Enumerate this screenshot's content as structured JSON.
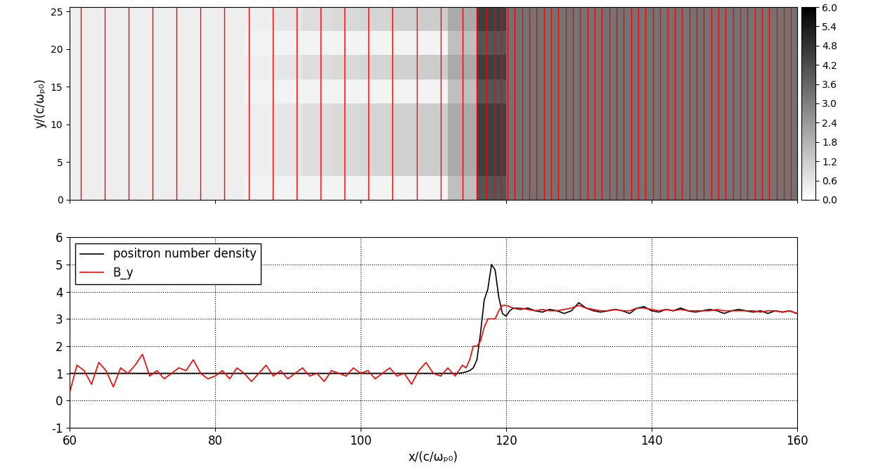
{
  "chart_data": [
    {
      "type": "heatmap",
      "ylabel": "y/(c/ωₚ₀)",
      "xlim": [
        60,
        160
      ],
      "xticks": [
        60,
        80,
        100,
        120,
        140,
        160
      ],
      "ylim": [
        0,
        25.6
      ],
      "yticks": [
        0,
        5,
        10,
        15,
        20,
        25
      ],
      "tick_labels": "y",
      "x_edges": [
        60,
        64,
        68,
        72,
        76,
        80,
        84,
        88,
        92,
        96,
        100,
        104,
        108,
        112,
        116,
        120,
        124,
        128,
        132,
        136,
        140,
        144,
        148,
        152,
        156,
        160
      ],
      "y_edges": [
        0,
        3.2,
        6.4,
        9.6,
        12.8,
        16.0,
        19.2,
        22.4,
        25.6
      ],
      "cells": [
        [
          0.4,
          0.4,
          0.4,
          0.4,
          0.4,
          0.4,
          0.3,
          0.3,
          0.3,
          0.3,
          0.3,
          0.3,
          0.3,
          1.5,
          4.0,
          3.3,
          3.3,
          3.3,
          3.3,
          3.3,
          3.3,
          3.3,
          3.3,
          3.3,
          3.3
        ],
        [
          0.4,
          0.4,
          0.4,
          0.4,
          0.4,
          0.4,
          0.4,
          0.6,
          0.8,
          0.9,
          1.0,
          1.1,
          1.2,
          2.0,
          4.5,
          3.3,
          3.3,
          3.3,
          3.3,
          3.3,
          3.3,
          3.3,
          3.3,
          3.3,
          3.3
        ],
        [
          0.4,
          0.4,
          0.4,
          0.4,
          0.4,
          0.4,
          0.4,
          0.6,
          0.8,
          0.9,
          1.0,
          1.1,
          1.2,
          2.0,
          4.5,
          3.3,
          3.3,
          3.3,
          3.3,
          3.3,
          3.3,
          3.3,
          3.3,
          3.3,
          3.3
        ],
        [
          0.4,
          0.4,
          0.4,
          0.4,
          0.4,
          0.4,
          0.4,
          0.6,
          0.8,
          0.9,
          1.0,
          1.1,
          1.2,
          2.0,
          4.5,
          3.3,
          3.3,
          3.3,
          3.3,
          3.3,
          3.3,
          3.3,
          3.3,
          3.3,
          3.3
        ],
        [
          0.4,
          0.4,
          0.4,
          0.4,
          0.4,
          0.4,
          0.3,
          0.3,
          0.3,
          0.3,
          0.3,
          0.3,
          0.3,
          1.5,
          4.0,
          3.3,
          3.3,
          3.3,
          3.3,
          3.3,
          3.3,
          3.3,
          3.3,
          3.3,
          3.3
        ],
        [
          0.4,
          0.4,
          0.4,
          0.4,
          0.4,
          0.4,
          0.4,
          0.6,
          0.8,
          0.9,
          1.0,
          1.1,
          1.2,
          2.0,
          4.5,
          3.3,
          3.3,
          3.3,
          3.3,
          3.3,
          3.3,
          3.3,
          3.3,
          3.3,
          3.3
        ],
        [
          0.4,
          0.4,
          0.4,
          0.4,
          0.4,
          0.4,
          0.3,
          0.3,
          0.3,
          0.3,
          0.3,
          0.3,
          0.3,
          1.5,
          4.0,
          3.3,
          3.3,
          3.3,
          3.3,
          3.3,
          3.3,
          3.3,
          3.3,
          3.3,
          3.3
        ],
        [
          0.4,
          0.4,
          0.4,
          0.4,
          0.4,
          0.4,
          0.4,
          0.6,
          0.8,
          0.9,
          1.0,
          1.1,
          1.2,
          2.0,
          4.5,
          3.3,
          3.3,
          3.3,
          3.3,
          3.3,
          3.3,
          3.3,
          3.3,
          3.3,
          3.3
        ]
      ],
      "colorbar_range": [
        0,
        6
      ],
      "colorbar_ticks": [
        {
          "value": 0,
          "label": "0.0"
        },
        {
          "value": 0.6,
          "label": "0.6"
        },
        {
          "value": 1.2,
          "label": "1.2"
        },
        {
          "value": 1.8,
          "label": "1.8"
        },
        {
          "value": 2.4,
          "label": "2.4"
        },
        {
          "value": 3.0,
          "label": "3.0"
        },
        {
          "value": 3.6,
          "label": "3.6"
        },
        {
          "value": 4.2,
          "label": "4.2"
        },
        {
          "value": 4.8,
          "label": "4.8"
        },
        {
          "value": 5.4,
          "label": "5.4"
        },
        {
          "value": 6.0,
          "label": "6.0"
        }
      ],
      "color": "#ff0000",
      "field_lines_x": [
        61.5,
        64.8,
        68.1,
        71.4,
        74.7,
        78.0,
        81.3,
        84.6,
        87.9,
        91.2,
        94.5,
        97.8,
        101.1,
        104.4,
        107.7,
        111.0,
        114.0,
        116.0,
        117.3,
        118.4,
        119.3,
        120.2,
        121.2,
        122.2,
        123.2,
        124.2,
        125.2,
        126.2,
        127.2,
        128.2,
        129.2,
        130.2,
        131.2,
        132.2,
        133.2,
        134.2,
        135.2,
        136.2,
        137.2,
        138.2,
        139.2,
        140.2,
        141.2,
        142.2,
        143.2,
        144.2,
        145.2,
        146.2,
        147.2,
        148.2,
        149.2,
        150.2,
        151.2,
        152.2,
        153.2,
        154.2,
        155.2,
        156.2,
        157.2,
        158.2,
        159.2
      ]
    },
    {
      "type": "line",
      "xlabel": "x/(c/ωₚ₀)",
      "xlim": [
        60,
        160
      ],
      "xticks": [
        60,
        80,
        100,
        120,
        140,
        160
      ],
      "ylim": [
        -1,
        6
      ],
      "yticks": [
        -1,
        0,
        1,
        2,
        3,
        4,
        5,
        6
      ],
      "grid": true,
      "legend": "upper left",
      "x": [
        60,
        61,
        62,
        63,
        64,
        65,
        66,
        67,
        68,
        69,
        70,
        71,
        72,
        73,
        74,
        75,
        76,
        77,
        78,
        79,
        80,
        81,
        82,
        83,
        84,
        85,
        86,
        87,
        88,
        89,
        90,
        91,
        92,
        93,
        94,
        95,
        96,
        97,
        98,
        99,
        100,
        101,
        102,
        103,
        104,
        105,
        106,
        107,
        108,
        109,
        110,
        111,
        112,
        113,
        113.5,
        114,
        114.5,
        115,
        115.5,
        116,
        116.5,
        117,
        117.5,
        118,
        118.5,
        119,
        119.5,
        120,
        120.5,
        121,
        122,
        123,
        124,
        125,
        126,
        127,
        128,
        129,
        130,
        131,
        132,
        133,
        134,
        135,
        136,
        137,
        138,
        139,
        140,
        141,
        142,
        143,
        144,
        145,
        146,
        147,
        148,
        149,
        150,
        151,
        152,
        153,
        154,
        155,
        156,
        157,
        158,
        159,
        160
      ],
      "series": [
        {
          "name": "positron number density",
          "color": "#000000",
          "values": [
            1.0,
            1.0,
            1.0,
            1.0,
            1.0,
            1.0,
            1.0,
            1.0,
            1.0,
            1.0,
            1.0,
            1.0,
            1.0,
            1.0,
            1.0,
            1.0,
            1.0,
            1.0,
            1.0,
            1.0,
            1.0,
            1.0,
            1.0,
            1.0,
            1.0,
            1.0,
            1.0,
            1.0,
            1.0,
            1.0,
            1.0,
            1.0,
            1.0,
            1.0,
            1.0,
            1.0,
            1.0,
            1.0,
            1.0,
            1.0,
            1.0,
            1.0,
            1.0,
            1.0,
            1.0,
            1.0,
            1.0,
            1.0,
            1.0,
            1.0,
            1.0,
            1.0,
            1.0,
            1.0,
            1.0,
            1.02,
            1.05,
            1.1,
            1.2,
            1.5,
            2.5,
            3.7,
            4.1,
            5.0,
            4.8,
            3.8,
            3.2,
            3.1,
            3.3,
            3.4,
            3.35,
            3.4,
            3.3,
            3.25,
            3.35,
            3.3,
            3.2,
            3.3,
            3.6,
            3.4,
            3.3,
            3.25,
            3.3,
            3.35,
            3.3,
            3.2,
            3.4,
            3.45,
            3.3,
            3.25,
            3.35,
            3.3,
            3.4,
            3.3,
            3.25,
            3.3,
            3.35,
            3.3,
            3.2,
            3.3,
            3.35,
            3.3,
            3.25,
            3.3,
            3.2,
            3.3,
            3.25,
            3.3,
            3.2
          ]
        },
        {
          "name": "B_y",
          "color": "#ff0000",
          "values": [
            0.3,
            1.3,
            1.1,
            0.6,
            1.4,
            1.1,
            0.5,
            1.2,
            1.0,
            1.3,
            1.7,
            0.9,
            1.1,
            0.8,
            1.0,
            1.2,
            1.1,
            1.5,
            1.0,
            0.8,
            0.9,
            1.1,
            0.8,
            1.2,
            1.0,
            0.7,
            1.0,
            1.3,
            0.9,
            1.1,
            0.8,
            1.0,
            1.2,
            0.9,
            1.0,
            0.7,
            1.1,
            1.0,
            0.9,
            1.2,
            1.0,
            1.1,
            0.8,
            1.0,
            1.2,
            0.9,
            1.0,
            0.6,
            1.1,
            1.4,
            1.0,
            0.9,
            1.2,
            0.9,
            1.1,
            1.3,
            1.2,
            1.5,
            2.0,
            2.0,
            2.2,
            2.7,
            3.0,
            3.0,
            3.0,
            3.3,
            3.5,
            3.5,
            3.45,
            3.4,
            3.4,
            3.35,
            3.3,
            3.35,
            3.3,
            3.3,
            3.35,
            3.4,
            3.5,
            3.4,
            3.35,
            3.3,
            3.3,
            3.35,
            3.3,
            3.3,
            3.4,
            3.4,
            3.35,
            3.3,
            3.35,
            3.3,
            3.35,
            3.3,
            3.3,
            3.3,
            3.3,
            3.35,
            3.3,
            3.3,
            3.3,
            3.3,
            3.3,
            3.25,
            3.3,
            3.3,
            3.25,
            3.3,
            3.2
          ]
        }
      ]
    }
  ]
}
